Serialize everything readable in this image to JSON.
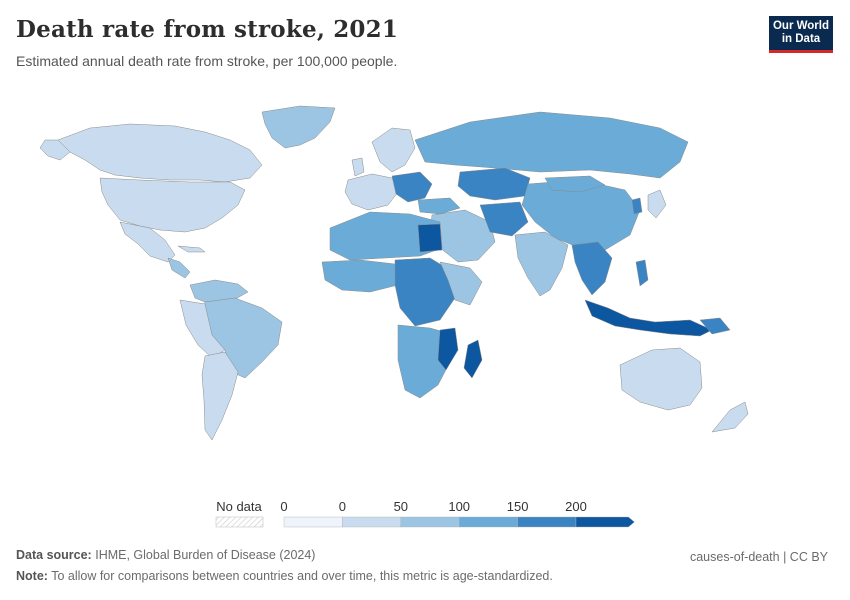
{
  "header": {
    "title": "Death rate from stroke, 2021",
    "subtitle": "Estimated annual death rate from stroke, per 100,000 people."
  },
  "logo": {
    "line1": "Our World",
    "line2": "in Data"
  },
  "legend": {
    "no_data_label": "No data",
    "ticks": [
      "0",
      "0",
      "50",
      "100",
      "150",
      "200"
    ],
    "colors": [
      "#eef4fb",
      "#c9dcef",
      "#9cc5e3",
      "#6aacd7",
      "#3a84c3",
      "#0d56a0"
    ]
  },
  "palette": {
    "ocean": "#ffffff",
    "border": "#8a8a8a",
    "very_low": "#c9dcef",
    "low": "#9cc5e3",
    "mid": "#6aacd7",
    "high": "#3a84c3",
    "very_high": "#0d56a0"
  },
  "footer": {
    "source_label": "Data source:",
    "source_text": "IHME, Global Burden of Disease (2024)",
    "note_label": "Note:",
    "note_text": "To allow for comparisons between countries and over time, this metric is age-standardized.",
    "license": "causes-of-death | CC BY"
  }
}
